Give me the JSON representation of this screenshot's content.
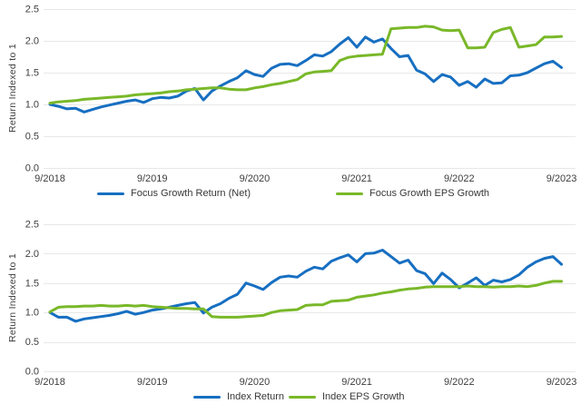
{
  "colors": {
    "blue": "#176FC1",
    "green": "#79B829",
    "grid": "#E8E8E8",
    "text": "#3D3D3D",
    "background": "#FFFFFF"
  },
  "chart_data": [
    {
      "type": "line",
      "title": "",
      "ylabel": "Return Indexed to 1",
      "xlabel": "",
      "x_frequency": "monthly",
      "x_labels": [
        "9/2018",
        "9/2019",
        "9/2020",
        "9/2021",
        "9/2022",
        "9/2023"
      ],
      "x_tick_months": [
        0,
        12,
        24,
        36,
        48,
        60
      ],
      "ylim": [
        0,
        2.5
      ],
      "yticks": [
        0,
        0.5,
        1,
        1.5,
        2,
        2.5
      ],
      "ytick_labels": [
        "0.0",
        "0.5",
        "1.0",
        "1.5",
        "2.0",
        "2.5"
      ],
      "grid": "horizontal",
      "legend_position": "bottom",
      "series": [
        {
          "name": "Focus Growth Return (Net)",
          "color": "#176FC1",
          "values": [
            1.0,
            0.97,
            0.93,
            0.94,
            0.88,
            0.92,
            0.96,
            0.99,
            1.02,
            1.05,
            1.07,
            1.03,
            1.09,
            1.11,
            1.1,
            1.13,
            1.21,
            1.25,
            1.07,
            1.21,
            1.29,
            1.36,
            1.42,
            1.53,
            1.47,
            1.44,
            1.57,
            1.63,
            1.64,
            1.61,
            1.69,
            1.78,
            1.76,
            1.83,
            1.95,
            2.05,
            1.9,
            2.06,
            1.98,
            2.03,
            1.88,
            1.75,
            1.77,
            1.54,
            1.48,
            1.36,
            1.47,
            1.43,
            1.3,
            1.36,
            1.27,
            1.4,
            1.33,
            1.34,
            1.45,
            1.46,
            1.5,
            1.57,
            1.64,
            1.68,
            1.58
          ]
        },
        {
          "name": "Focus Growth EPS Growth",
          "color": "#79B829",
          "values": [
            1.02,
            1.04,
            1.05,
            1.06,
            1.08,
            1.09,
            1.1,
            1.11,
            1.12,
            1.13,
            1.15,
            1.16,
            1.17,
            1.18,
            1.2,
            1.21,
            1.23,
            1.24,
            1.25,
            1.26,
            1.26,
            1.24,
            1.23,
            1.23,
            1.26,
            1.28,
            1.31,
            1.33,
            1.36,
            1.39,
            1.48,
            1.51,
            1.52,
            1.53,
            1.69,
            1.74,
            1.76,
            1.77,
            1.78,
            1.79,
            2.19,
            2.2,
            2.21,
            2.21,
            2.23,
            2.22,
            2.17,
            2.16,
            2.17,
            1.89,
            1.89,
            1.9,
            2.13,
            2.18,
            2.21,
            1.9,
            1.92,
            1.94,
            2.06,
            2.06,
            2.07
          ]
        }
      ]
    },
    {
      "type": "line",
      "title": "",
      "ylabel": "Return Indexed to 1",
      "xlabel": "",
      "x_frequency": "monthly",
      "x_labels": [
        "9/2018",
        "9/2019",
        "9/2020",
        "9/2021",
        "9/2022",
        "9/2023"
      ],
      "x_tick_months": [
        0,
        12,
        24,
        36,
        48,
        60
      ],
      "ylim": [
        0,
        2.5
      ],
      "yticks": [
        0,
        0.5,
        1,
        1.5,
        2,
        2.5
      ],
      "ytick_labels": [
        "0.0",
        "0.5",
        "1.0",
        "1.5",
        "2.0",
        "2.5"
      ],
      "grid": "horizontal",
      "legend_position": "bottom",
      "series": [
        {
          "name": "Index Return",
          "color": "#176FC1",
          "values": [
            1.0,
            0.92,
            0.92,
            0.85,
            0.89,
            0.91,
            0.93,
            0.95,
            0.98,
            1.02,
            0.97,
            1.0,
            1.04,
            1.06,
            1.09,
            1.12,
            1.15,
            1.17,
            0.99,
            1.09,
            1.15,
            1.24,
            1.31,
            1.5,
            1.45,
            1.39,
            1.51,
            1.6,
            1.62,
            1.6,
            1.7,
            1.77,
            1.74,
            1.87,
            1.93,
            1.98,
            1.86,
            2.0,
            2.01,
            2.06,
            1.95,
            1.84,
            1.89,
            1.71,
            1.66,
            1.49,
            1.67,
            1.56,
            1.42,
            1.5,
            1.59,
            1.46,
            1.55,
            1.52,
            1.56,
            1.64,
            1.77,
            1.86,
            1.92,
            1.95,
            1.82
          ]
        },
        {
          "name": "Index EPS Growth",
          "color": "#79B829",
          "values": [
            1.01,
            1.09,
            1.1,
            1.1,
            1.11,
            1.11,
            1.12,
            1.11,
            1.11,
            1.12,
            1.11,
            1.12,
            1.1,
            1.09,
            1.08,
            1.07,
            1.07,
            1.06,
            1.06,
            0.93,
            0.92,
            0.92,
            0.92,
            0.93,
            0.94,
            0.95,
            1.0,
            1.03,
            1.04,
            1.05,
            1.12,
            1.13,
            1.13,
            1.19,
            1.2,
            1.21,
            1.26,
            1.28,
            1.3,
            1.33,
            1.35,
            1.38,
            1.4,
            1.41,
            1.43,
            1.44,
            1.44,
            1.44,
            1.44,
            1.45,
            1.44,
            1.44,
            1.43,
            1.44,
            1.44,
            1.45,
            1.44,
            1.46,
            1.5,
            1.53,
            1.53
          ]
        }
      ]
    }
  ]
}
